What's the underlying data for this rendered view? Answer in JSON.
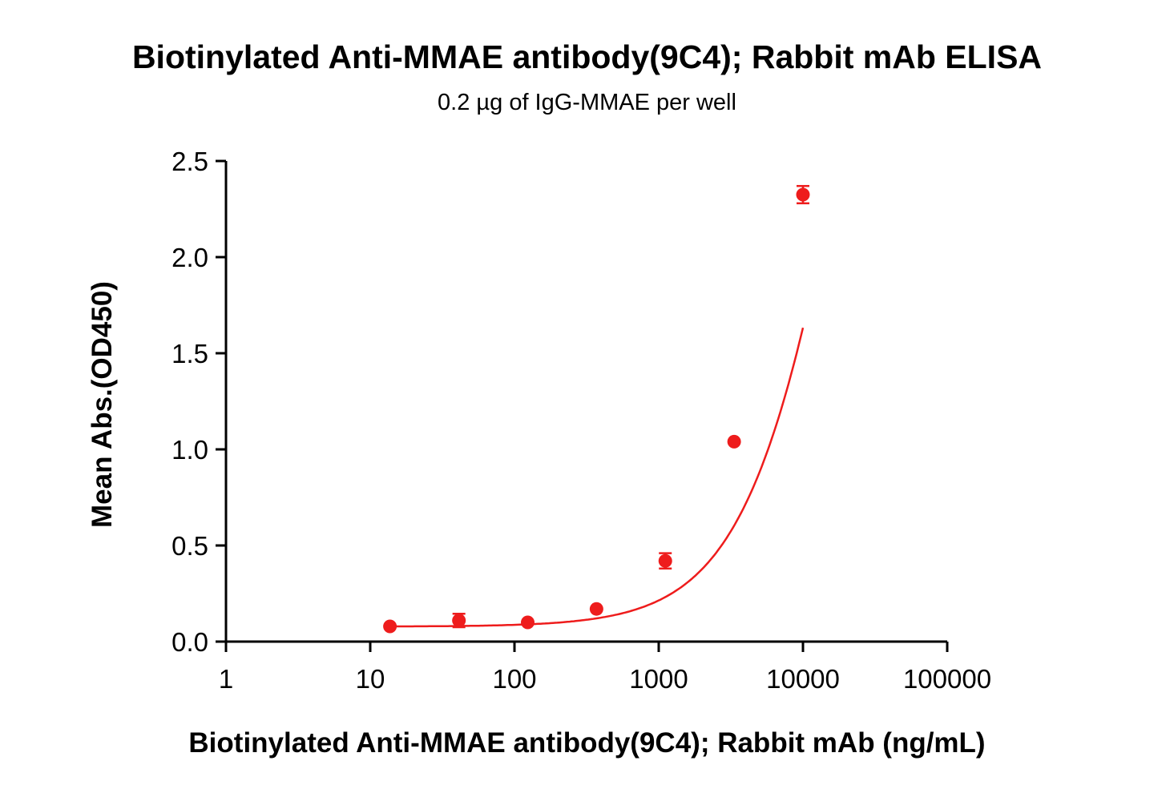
{
  "chart_data": {
    "type": "scatter",
    "title": "Biotinylated Anti-MMAE antibody(9C4); Rabbit mAb ELISA",
    "subtitle": "0.2 µg of IgG-MMAE per well",
    "xlabel": "Biotinylated Anti-MMAE antibody(9C4); Rabbit mAb (ng/mL)",
    "ylabel": "Mean Abs.(OD450)",
    "xscale": "log",
    "xlim": [
      1,
      100000
    ],
    "ylim": [
      0,
      2.5
    ],
    "xticks": [
      "1",
      "10",
      "100",
      "1000",
      "10000",
      "100000"
    ],
    "yticks": [
      "0.0",
      "0.5",
      "1.0",
      "1.5",
      "2.0",
      "2.5"
    ],
    "grid": false,
    "fit_curve": "four-parameter logistic",
    "color": "#ee1c1c",
    "series": [
      {
        "x": [
          13.7,
          41.2,
          123.5,
          370.4,
          1111.1,
          3333.3,
          10000
        ],
        "y": [
          0.079,
          0.11,
          0.1,
          0.17,
          0.42,
          1.04,
          2.325
        ],
        "error": [
          0.01,
          0.035,
          0.01,
          0.01,
          0.04,
          0.01,
          0.045
        ]
      }
    ]
  }
}
